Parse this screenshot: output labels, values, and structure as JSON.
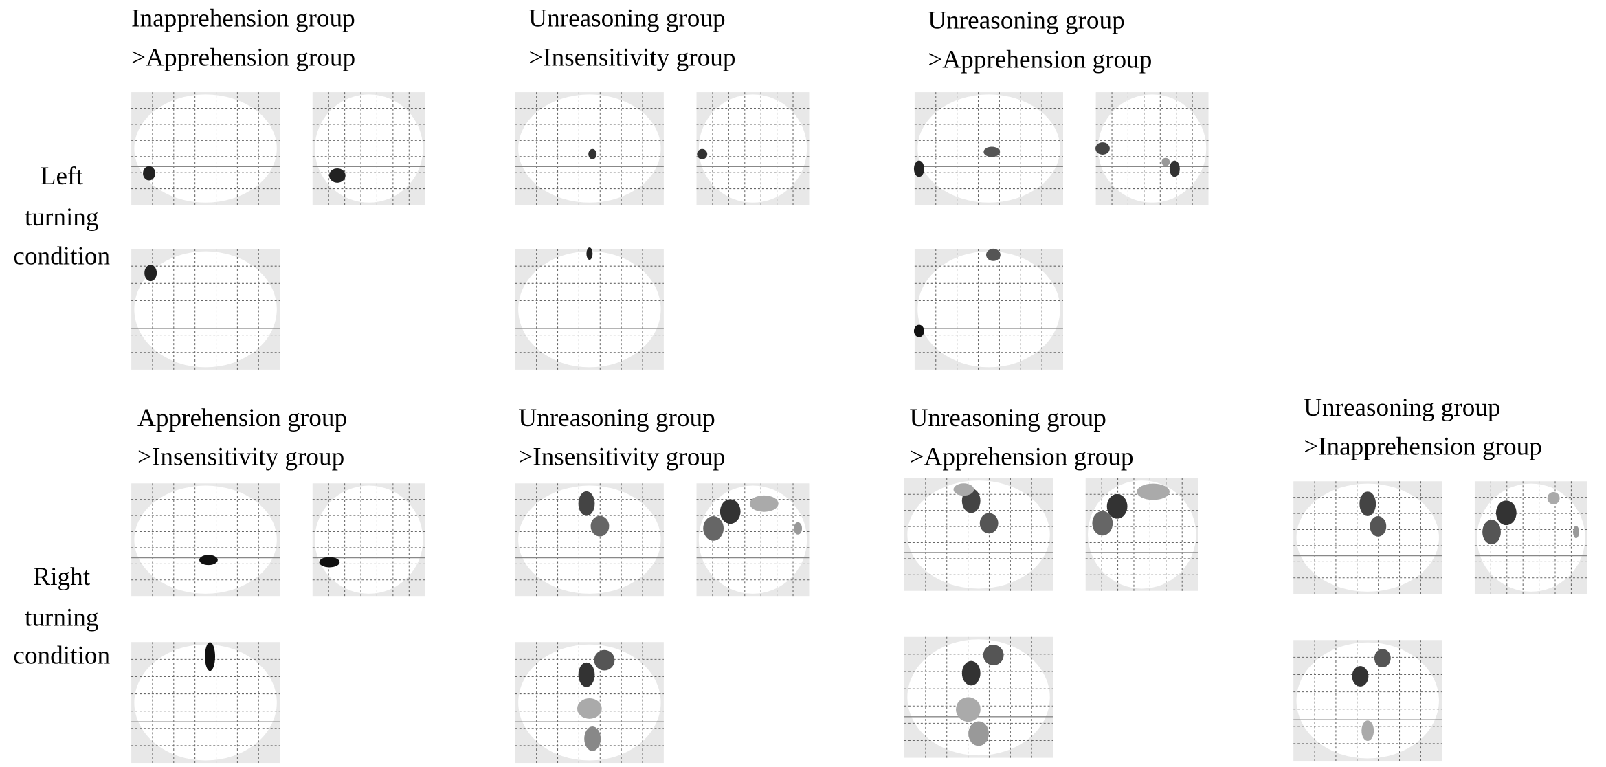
{
  "rows": [
    {
      "label": [
        "Left",
        "turning",
        "condition"
      ],
      "panels": [
        {
          "title": [
            "Inapprehension group",
            ">Apprehension group"
          ]
        },
        {
          "title": [
            "Unreasoning group",
            ">Insensitivity group"
          ]
        },
        {
          "title": [
            "Unreasoning group",
            ">Apprehension group"
          ]
        }
      ]
    },
    {
      "label": [
        "Right",
        "turning",
        "condition"
      ],
      "panels": [
        {
          "title": [
            "Apprehension group",
            ">Insensitivity group"
          ]
        },
        {
          "title": [
            "Unreasoning group",
            ">Insensitivity group"
          ]
        },
        {
          "title": [
            "Unreasoning group",
            ">Apprehension group"
          ]
        },
        {
          "title": [
            "Unreasoning group",
            ">Inapprehension group"
          ]
        }
      ]
    }
  ]
}
